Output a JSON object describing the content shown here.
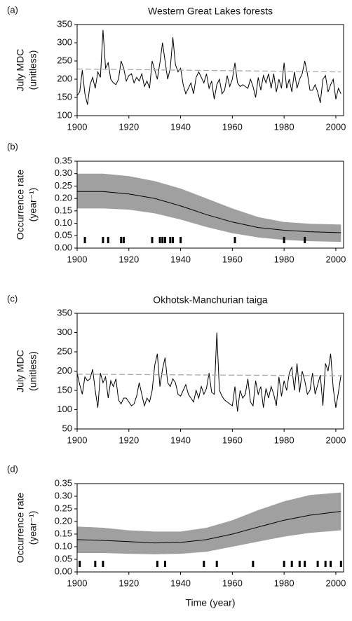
{
  "chart_data": [
    {
      "type": "line",
      "panel_label": "(a)",
      "title": "Western Great Lakes forests",
      "ylabel": [
        "July MDC",
        "(unitless)"
      ],
      "x": [
        1900,
        1901,
        1902,
        1903,
        1904,
        1905,
        1906,
        1907,
        1908,
        1909,
        1910,
        1911,
        1912,
        1913,
        1914,
        1915,
        1916,
        1917,
        1918,
        1919,
        1920,
        1921,
        1922,
        1923,
        1924,
        1925,
        1926,
        1927,
        1928,
        1929,
        1930,
        1931,
        1932,
        1933,
        1934,
        1935,
        1936,
        1937,
        1938,
        1939,
        1940,
        1941,
        1942,
        1943,
        1944,
        1945,
        1946,
        1947,
        1948,
        1949,
        1950,
        1951,
        1952,
        1953,
        1954,
        1955,
        1956,
        1957,
        1958,
        1959,
        1960,
        1961,
        1962,
        1963,
        1964,
        1965,
        1966,
        1967,
        1968,
        1969,
        1970,
        1971,
        1972,
        1973,
        1974,
        1975,
        1976,
        1977,
        1978,
        1979,
        1980,
        1981,
        1982,
        1983,
        1984,
        1985,
        1986,
        1987,
        1988,
        1989,
        1990,
        1991,
        1992,
        1993,
        1994,
        1995,
        1996,
        1997,
        1998,
        1999,
        2000,
        2001,
        2002
      ],
      "series": [
        {
          "color": "#000000",
          "values": [
            155,
            165,
            225,
            160,
            130,
            185,
            205,
            175,
            220,
            205,
            335,
            230,
            245,
            200,
            190,
            185,
            200,
            250,
            230,
            195,
            210,
            215,
            190,
            205,
            195,
            215,
            180,
            195,
            175,
            250,
            225,
            200,
            245,
            300,
            250,
            200,
            230,
            315,
            240,
            220,
            230,
            185,
            160,
            175,
            190,
            160,
            205,
            220,
            205,
            190,
            215,
            175,
            195,
            145,
            185,
            200,
            160,
            170,
            210,
            180,
            200,
            245,
            190,
            180,
            185,
            180,
            175,
            200,
            180,
            150,
            205,
            170,
            210,
            190,
            215,
            175,
            215,
            165,
            200,
            175,
            245,
            175,
            200,
            165,
            220,
            175,
            200,
            215,
            250,
            215,
            170,
            170,
            185,
            165,
            135,
            200,
            210,
            165,
            185,
            200,
            145,
            175,
            160
          ]
        },
        {
          "color": "#aaaaaa",
          "dashed": true,
          "x": [
            1900,
            2002
          ],
          "values": [
            228,
            220
          ]
        }
      ],
      "xlim": [
        1900,
        2003
      ],
      "xticks": [
        1900,
        1920,
        1940,
        1960,
        1980,
        2000
      ],
      "ylim": [
        100,
        350
      ],
      "yticks": [
        100,
        150,
        200,
        250,
        300,
        350
      ]
    },
    {
      "type": "band",
      "panel_label": "(b)",
      "ylabel": [
        "Occurrence rate",
        "(year⁻¹)"
      ],
      "x": [
        1900,
        1910,
        1920,
        1930,
        1940,
        1950,
        1960,
        1970,
        1980,
        1990,
        2002
      ],
      "series": [
        {
          "color": "#000000",
          "values": [
            0.228,
            0.228,
            0.218,
            0.2,
            0.17,
            0.135,
            0.105,
            0.083,
            0.072,
            0.066,
            0.062
          ]
        }
      ],
      "band": {
        "color": "#a0a0a0",
        "upper": [
          0.3,
          0.3,
          0.29,
          0.27,
          0.24,
          0.2,
          0.16,
          0.125,
          0.105,
          0.098,
          0.095
        ],
        "lower": [
          0.16,
          0.16,
          0.155,
          0.14,
          0.115,
          0.085,
          0.06,
          0.043,
          0.033,
          0.028,
          0.025
        ]
      },
      "events": [
        1903,
        1910,
        1912,
        1917,
        1918,
        1929,
        1932,
        1933,
        1934,
        1936,
        1937,
        1940,
        1961,
        1980,
        1988
      ],
      "event_color": "#000000",
      "xlim": [
        1900,
        2003
      ],
      "xticks": [
        1900,
        1920,
        1940,
        1960,
        1980,
        2000
      ],
      "ylim": [
        0,
        0.35
      ],
      "yticks": [
        {
          "value": 0,
          "label": "0.00"
        },
        {
          "value": 0.05,
          "label": "0.05"
        },
        {
          "value": 0.1,
          "label": "0.10"
        },
        {
          "value": 0.15,
          "label": "0.15"
        },
        {
          "value": 0.2,
          "label": "0.20"
        },
        {
          "value": 0.25,
          "label": "0.25"
        },
        {
          "value": 0.3,
          "label": "0.30"
        },
        {
          "value": 0.35,
          "label": "0.35"
        }
      ]
    },
    {
      "type": "line",
      "panel_label": "(c)",
      "title": "Okhotsk-Manchurian taiga",
      "ylabel": [
        "July MDC",
        "(unitless)"
      ],
      "x": [
        1900,
        1901,
        1902,
        1903,
        1904,
        1905,
        1906,
        1907,
        1908,
        1909,
        1910,
        1911,
        1912,
        1913,
        1914,
        1915,
        1916,
        1917,
        1918,
        1919,
        1920,
        1921,
        1922,
        1923,
        1924,
        1925,
        1926,
        1927,
        1928,
        1929,
        1930,
        1931,
        1932,
        1933,
        1934,
        1935,
        1936,
        1937,
        1938,
        1939,
        1940,
        1941,
        1942,
        1943,
        1944,
        1945,
        1946,
        1947,
        1948,
        1949,
        1950,
        1951,
        1952,
        1953,
        1954,
        1955,
        1956,
        1957,
        1958,
        1959,
        1960,
        1961,
        1962,
        1963,
        1964,
        1965,
        1966,
        1967,
        1968,
        1969,
        1970,
        1971,
        1972,
        1973,
        1974,
        1975,
        1976,
        1977,
        1978,
        1979,
        1980,
        1981,
        1982,
        1983,
        1984,
        1985,
        1986,
        1987,
        1988,
        1989,
        1990,
        1991,
        1992,
        1993,
        1994,
        1995,
        1996,
        1997,
        1998,
        1999,
        2000,
        2001,
        2002
      ],
      "series": [
        {
          "color": "#000000",
          "values": [
            195,
            165,
            140,
            185,
            175,
            180,
            205,
            150,
            105,
            195,
            170,
            185,
            130,
            175,
            160,
            180,
            125,
            115,
            130,
            130,
            120,
            110,
            115,
            135,
            170,
            140,
            110,
            130,
            120,
            150,
            215,
            245,
            160,
            205,
            235,
            170,
            160,
            180,
            170,
            140,
            135,
            150,
            165,
            140,
            130,
            120,
            150,
            130,
            160,
            140,
            155,
            195,
            145,
            140,
            300,
            150,
            135,
            125,
            120,
            115,
            110,
            160,
            95,
            150,
            130,
            140,
            180,
            120,
            110,
            175,
            140,
            160,
            105,
            155,
            130,
            160,
            140,
            110,
            185,
            135,
            175,
            150,
            195,
            210,
            150,
            220,
            145,
            200,
            175,
            140,
            150,
            195,
            140,
            165,
            190,
            110,
            220,
            200,
            245,
            155,
            105,
            145,
            190
          ]
        },
        {
          "color": "#aaaaaa",
          "dashed": true,
          "x": [
            1900,
            2002
          ],
          "values": [
            192,
            188
          ]
        }
      ],
      "xlim": [
        1900,
        2003
      ],
      "xticks": [
        1900,
        1920,
        1940,
        1960,
        1980,
        2000
      ],
      "ylim": [
        50,
        350
      ],
      "yticks": [
        50,
        100,
        150,
        200,
        250,
        300,
        350
      ]
    },
    {
      "type": "band",
      "panel_label": "(d)",
      "ylabel": [
        "Occurrence rate",
        "(year⁻¹)"
      ],
      "xlabel": "Time (year)",
      "x": [
        1900,
        1910,
        1920,
        1930,
        1940,
        1950,
        1960,
        1970,
        1980,
        1990,
        2002
      ],
      "series": [
        {
          "color": "#000000",
          "values": [
            0.128,
            0.125,
            0.12,
            0.115,
            0.117,
            0.128,
            0.15,
            0.178,
            0.205,
            0.225,
            0.24
          ]
        }
      ],
      "band": {
        "color": "#a0a0a0",
        "upper": [
          0.18,
          0.175,
          0.165,
          0.16,
          0.16,
          0.175,
          0.205,
          0.245,
          0.28,
          0.305,
          0.315
        ],
        "lower": [
          0.075,
          0.075,
          0.072,
          0.07,
          0.072,
          0.08,
          0.1,
          0.12,
          0.14,
          0.155,
          0.165
        ]
      },
      "events": [
        1901,
        1907,
        1910,
        1931,
        1934,
        1949,
        1954,
        1968,
        1980,
        1983,
        1986,
        1988,
        1993,
        1996,
        1998,
        2002
      ],
      "event_color": "#000000",
      "xlim": [
        1900,
        2003
      ],
      "xticks": [
        1900,
        1920,
        1940,
        1960,
        1980,
        2000
      ],
      "ylim": [
        0,
        0.35
      ],
      "yticks": [
        {
          "value": 0,
          "label": "0.00"
        },
        {
          "value": 0.05,
          "label": "0.05"
        },
        {
          "value": 0.1,
          "label": "0.10"
        },
        {
          "value": 0.15,
          "label": "0.15"
        },
        {
          "value": 0.2,
          "label": "0.20"
        },
        {
          "value": 0.25,
          "label": "0.25"
        },
        {
          "value": 0.3,
          "label": "0.30"
        },
        {
          "value": 0.35,
          "label": "0.35"
        }
      ]
    }
  ]
}
